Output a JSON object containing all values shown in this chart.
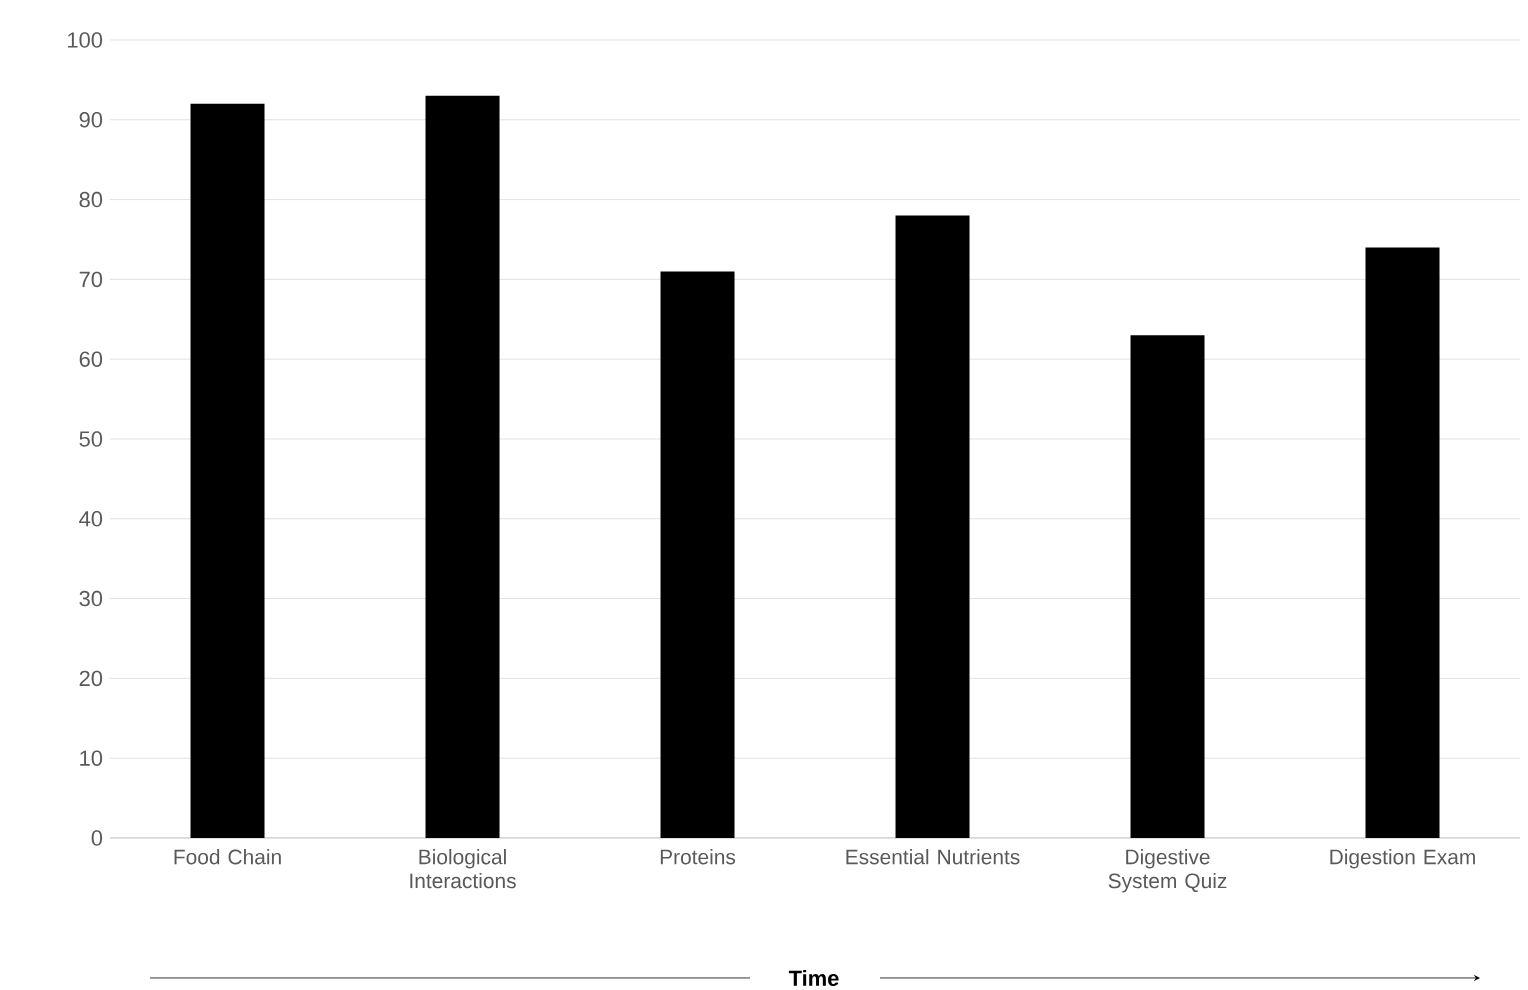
{
  "chart_data": {
    "type": "bar",
    "xlabel": "Time",
    "categories": [
      "Food Chain",
      "Biological Interactions",
      "Proteins",
      "Essential Nutrients",
      "Digestive System Quiz",
      "Digestion Exam"
    ],
    "values": [
      92,
      93,
      71,
      78,
      63,
      74
    ],
    "color": "#000000",
    "ylim": [
      0,
      100
    ],
    "yticks": [
      0,
      10,
      20,
      30,
      40,
      50,
      60,
      70,
      80,
      90,
      100
    ],
    "grid": "y"
  }
}
